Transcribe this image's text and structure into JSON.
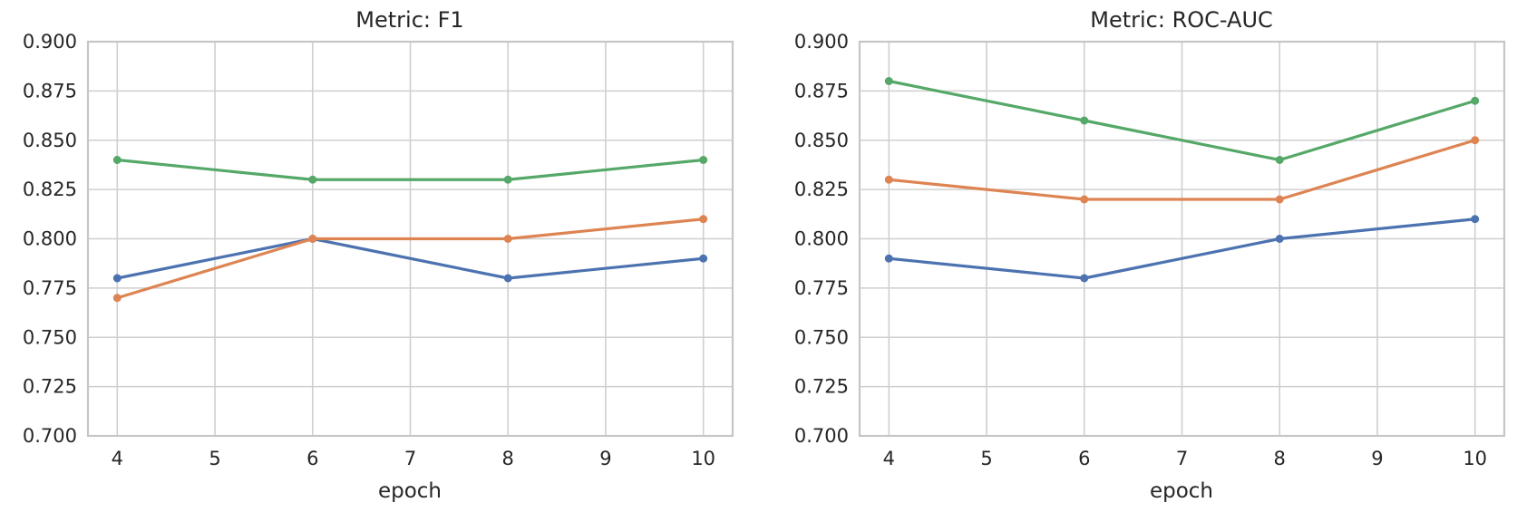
{
  "figure": {
    "background_color": "#ffffff",
    "grid_color": "#cfcfcf",
    "spine_color": "#c6c6c6",
    "text_color": "#262626"
  },
  "chart_data": [
    {
      "type": "line",
      "title": "Metric: F1",
      "xlabel": "epoch",
      "ylabel": "",
      "x": [
        4,
        6,
        8,
        10
      ],
      "xticks": [
        4,
        5,
        6,
        7,
        8,
        9,
        10
      ],
      "xtick_labels": [
        "4",
        "5",
        "6",
        "7",
        "8",
        "9",
        "10"
      ],
      "yticks": [
        0.7,
        0.725,
        0.75,
        0.775,
        0.8,
        0.825,
        0.85,
        0.875,
        0.9
      ],
      "ytick_labels": [
        "0.700",
        "0.725",
        "0.750",
        "0.775",
        "0.800",
        "0.825",
        "0.850",
        "0.875",
        "0.900"
      ],
      "xlim": [
        3.7,
        10.3
      ],
      "ylim": [
        0.7,
        0.9
      ],
      "grid": true,
      "legend": "none",
      "marker": "circle",
      "series": [
        {
          "name": "series-blue",
          "color": "#4C72B0",
          "values": [
            0.78,
            0.8,
            0.78,
            0.79
          ]
        },
        {
          "name": "series-orange",
          "color": "#DD8452",
          "values": [
            0.77,
            0.8,
            0.8,
            0.81
          ]
        },
        {
          "name": "series-green",
          "color": "#55A868",
          "values": [
            0.84,
            0.83,
            0.83,
            0.84
          ]
        }
      ]
    },
    {
      "type": "line",
      "title": "Metric: ROC-AUC",
      "xlabel": "epoch",
      "ylabel": "",
      "x": [
        4,
        6,
        8,
        10
      ],
      "xticks": [
        4,
        5,
        6,
        7,
        8,
        9,
        10
      ],
      "xtick_labels": [
        "4",
        "5",
        "6",
        "7",
        "8",
        "9",
        "10"
      ],
      "yticks": [
        0.7,
        0.725,
        0.75,
        0.775,
        0.8,
        0.825,
        0.85,
        0.875,
        0.9
      ],
      "ytick_labels": [
        "0.700",
        "0.725",
        "0.750",
        "0.775",
        "0.800",
        "0.825",
        "0.850",
        "0.875",
        "0.900"
      ],
      "xlim": [
        3.7,
        10.3
      ],
      "ylim": [
        0.7,
        0.9
      ],
      "grid": true,
      "legend": "none",
      "marker": "circle",
      "series": [
        {
          "name": "series-blue",
          "color": "#4C72B0",
          "values": [
            0.79,
            0.78,
            0.8,
            0.81
          ]
        },
        {
          "name": "series-orange",
          "color": "#DD8452",
          "values": [
            0.83,
            0.82,
            0.82,
            0.85
          ]
        },
        {
          "name": "series-green",
          "color": "#55A868",
          "values": [
            0.88,
            0.86,
            0.84,
            0.87
          ]
        }
      ]
    }
  ]
}
